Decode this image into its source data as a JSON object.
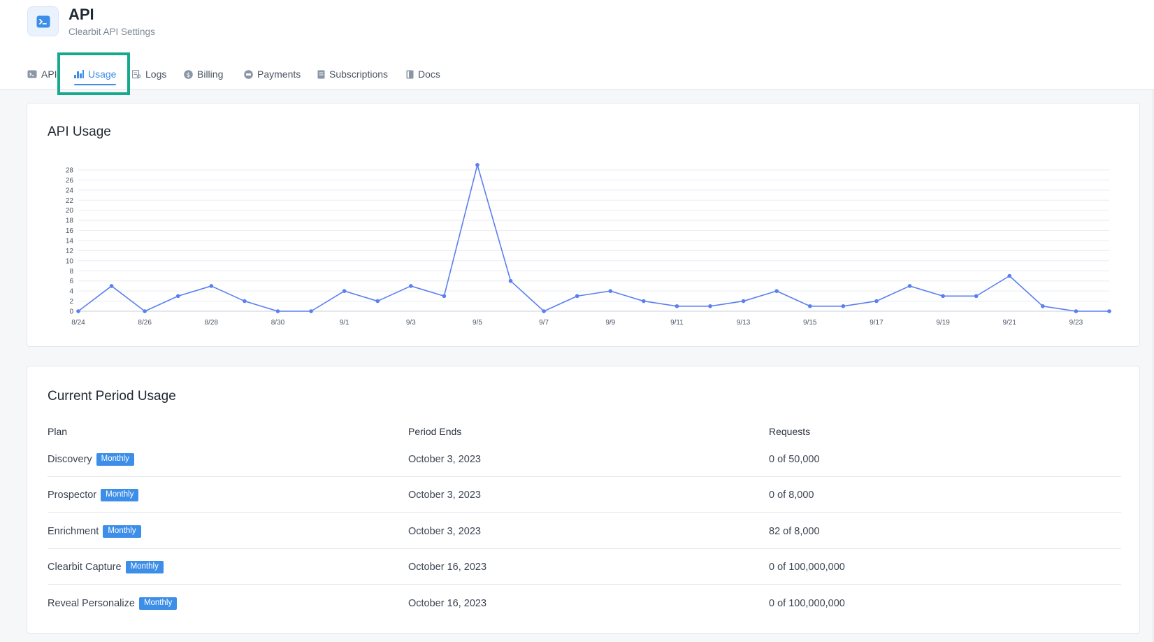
{
  "header": {
    "title": "API",
    "subtitle": "Clearbit API Settings"
  },
  "tabs": [
    {
      "label": "API",
      "icon": "terminal-icon",
      "active": false
    },
    {
      "label": "Usage",
      "icon": "bar-chart-icon",
      "active": true
    },
    {
      "label": "Logs",
      "icon": "logs-icon",
      "active": false
    },
    {
      "label": "Billing",
      "icon": "dollar-icon",
      "active": false
    },
    {
      "label": "Payments",
      "icon": "payments-icon",
      "active": false
    },
    {
      "label": "Subscriptions",
      "icon": "subscriptions-icon",
      "active": false
    },
    {
      "label": "Docs",
      "icon": "docs-icon",
      "active": false
    }
  ],
  "colors": {
    "accent": "#3d8ee8",
    "line": "#5b7ff0",
    "highlight": "#16a98c"
  },
  "usage_card": {
    "title": "API Usage"
  },
  "chart_data": {
    "type": "line",
    "title": "API Usage",
    "xlabel": "",
    "ylabel": "",
    "ylim": [
      0,
      28
    ],
    "yticks": [
      0,
      2,
      4,
      6,
      8,
      10,
      12,
      14,
      16,
      18,
      20,
      22,
      24,
      26,
      28
    ],
    "grid": true,
    "x": [
      "8/24",
      "8/25",
      "8/26",
      "8/27",
      "8/28",
      "8/29",
      "8/30",
      "8/31",
      "9/1",
      "9/2",
      "9/3",
      "9/4",
      "9/5",
      "9/6",
      "9/7",
      "9/8",
      "9/9",
      "9/10",
      "9/11",
      "9/12",
      "9/13",
      "9/14",
      "9/15",
      "9/16",
      "9/17",
      "9/18",
      "9/19",
      "9/20",
      "9/21",
      "9/22",
      "9/23",
      "9/24"
    ],
    "xtick_labels": [
      "8/24",
      "8/26",
      "8/28",
      "8/30",
      "9/1",
      "9/3",
      "9/5",
      "9/7",
      "9/9",
      "9/11",
      "9/13",
      "9/15",
      "9/17",
      "9/19",
      "9/21",
      "9/23"
    ],
    "series": [
      {
        "values": [
          0,
          5,
          0,
          3,
          5,
          2,
          0,
          0,
          4,
          2,
          5,
          3,
          29,
          6,
          0,
          3,
          4,
          2,
          1,
          1,
          2,
          4,
          1,
          1,
          2,
          5,
          3,
          3,
          7,
          1,
          0,
          0
        ]
      }
    ]
  },
  "period_card": {
    "title": "Current Period Usage",
    "columns": [
      "Plan",
      "Period Ends",
      "Requests"
    ],
    "rows": [
      {
        "plan": "Discovery",
        "badge": "Monthly",
        "period_ends": "October 3, 2023",
        "requests": "0 of 50,000"
      },
      {
        "plan": "Prospector",
        "badge": "Monthly",
        "period_ends": "October 3, 2023",
        "requests": "0 of 8,000"
      },
      {
        "plan": "Enrichment",
        "badge": "Monthly",
        "period_ends": "October 3, 2023",
        "requests": "82 of 8,000"
      },
      {
        "plan": "Clearbit Capture",
        "badge": "Monthly",
        "period_ends": "October 16, 2023",
        "requests": "0 of 100,000,000"
      },
      {
        "plan": "Reveal Personalize",
        "badge": "Monthly",
        "period_ends": "October 16, 2023",
        "requests": "0 of 100,000,000"
      }
    ]
  }
}
